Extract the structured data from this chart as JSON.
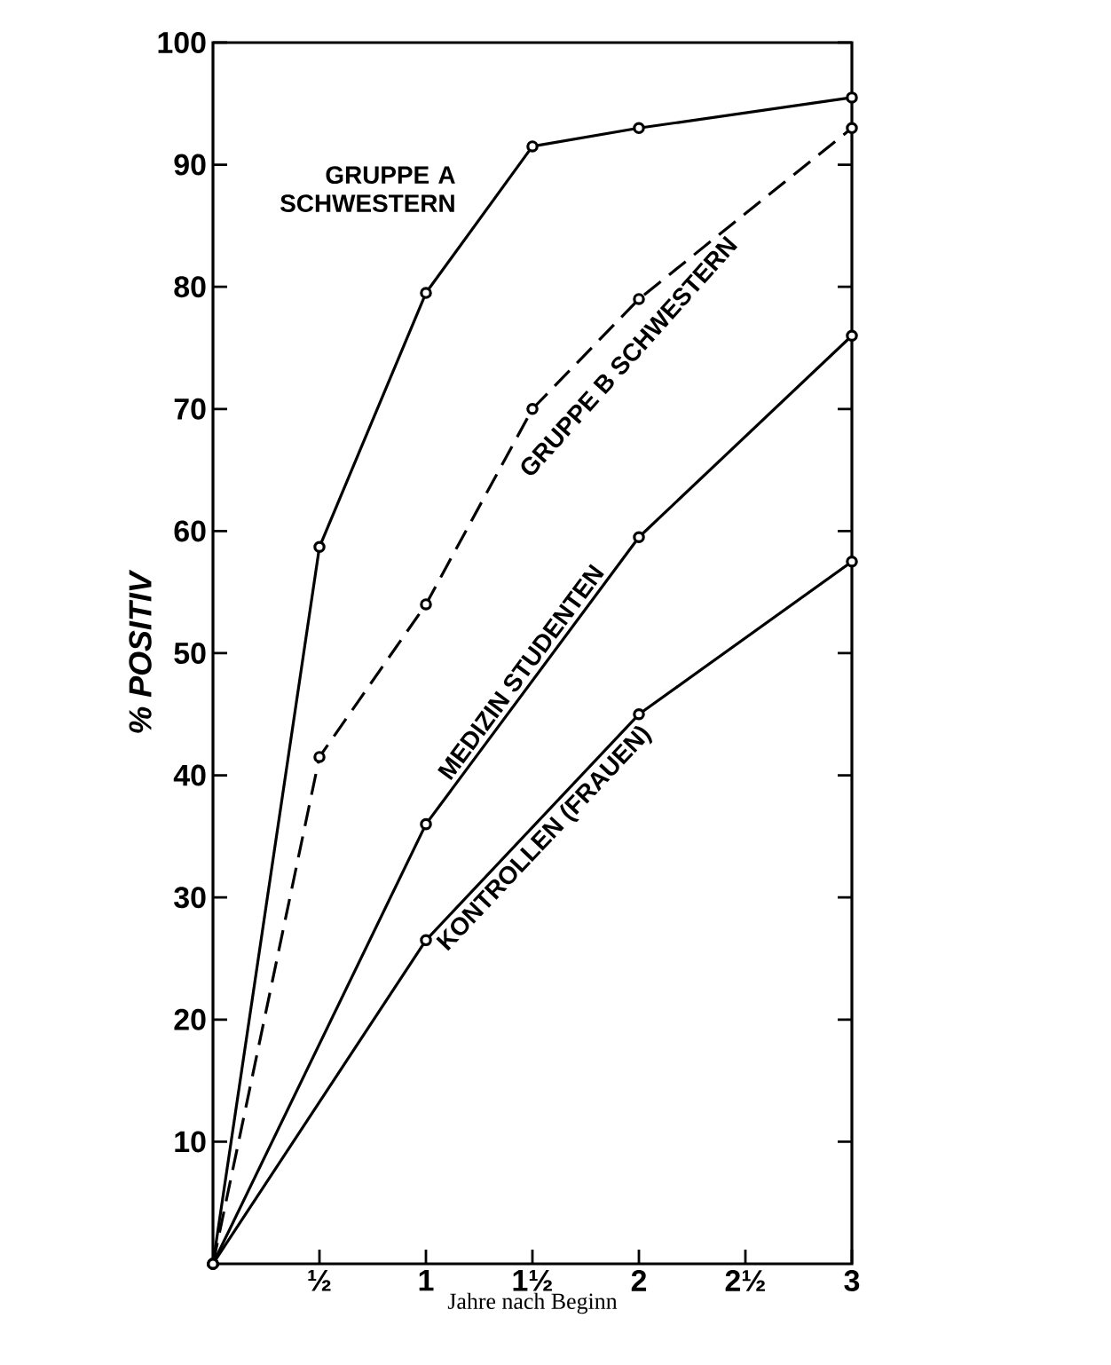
{
  "chart_data": {
    "type": "line",
    "xlabel": "Jahre nach Beginn",
    "ylabel": "% POSITIV",
    "xlim": [
      0,
      3
    ],
    "ylim": [
      0,
      100
    ],
    "xticks": [
      {
        "value": 0.5,
        "label": "½"
      },
      {
        "value": 1,
        "label": "1"
      },
      {
        "value": 1.5,
        "label": "1½"
      },
      {
        "value": 2,
        "label": "2"
      },
      {
        "value": 2.5,
        "label": "2½"
      },
      {
        "value": 3,
        "label": "3"
      }
    ],
    "yticks": [
      10,
      20,
      30,
      40,
      50,
      60,
      70,
      80,
      90,
      100
    ],
    "grid": false,
    "marker": "circle",
    "series": [
      {
        "name": "GRUPPE A SCHWESTERN",
        "color": "#000000",
        "line_style": "solid",
        "x": [
          0,
          0.5,
          1,
          1.5,
          2,
          3
        ],
        "values": [
          0,
          58.7,
          79.5,
          91.5,
          93,
          95.5
        ]
      },
      {
        "name": "GRUPPE B SCHWESTERN",
        "color": "#000000",
        "line_style": "dashed",
        "x": [
          0,
          0.5,
          1,
          1.5,
          2,
          3
        ],
        "values": [
          0,
          41.5,
          54,
          70,
          79,
          93
        ]
      },
      {
        "name": "MEDIZIN STUDENTEN",
        "color": "#000000",
        "line_style": "solid",
        "x": [
          0,
          1,
          2,
          3
        ],
        "values": [
          0,
          36,
          59.5,
          76
        ]
      },
      {
        "name": "KONTROLLEN (FRAUEN)",
        "color": "#000000",
        "line_style": "solid",
        "x": [
          0,
          1,
          2,
          3
        ],
        "values": [
          0,
          26.5,
          45,
          57.5
        ]
      }
    ]
  }
}
